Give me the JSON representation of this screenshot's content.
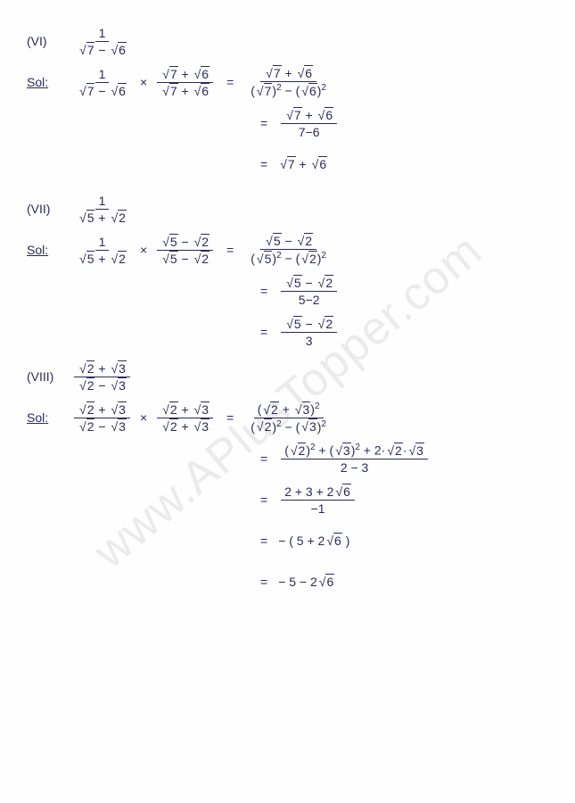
{
  "watermark": "www.APlusTopper.com",
  "p6": {
    "label": "(VI)",
    "given_num": "1",
    "given_den_a": "7",
    "given_den_b": "6",
    "sol": "Sol",
    "mult_num_a": "7",
    "mult_num_b": "6",
    "mult_den_a": "7",
    "mult_den_b": "6",
    "r1_num_a": "7",
    "r1_num_b": "6",
    "r1_den_a": "7",
    "r1_den_b": "6",
    "r2_num_a": "7",
    "r2_num_b": "6",
    "r2_den": "7−6",
    "r3_a": "7",
    "r3_b": "6"
  },
  "p7": {
    "label": "(VII)",
    "given_num": "1",
    "given_den_a": "5",
    "given_den_b": "2",
    "sol": "Sol",
    "mult_num_a": "5",
    "mult_num_b": "2",
    "mult_den_a": "5",
    "mult_den_b": "2",
    "r1_num_a": "5",
    "r1_num_b": "2",
    "r1_den_a": "5",
    "r1_den_b": "2",
    "r2_num_a": "5",
    "r2_num_b": "2",
    "r2_den": "5−2",
    "r3_num_a": "5",
    "r3_num_b": "2",
    "r3_den": "3"
  },
  "p8": {
    "label": "(VIII)",
    "given_num_a": "2",
    "given_num_b": "3",
    "given_den_a": "2",
    "given_den_b": "3",
    "sol": "Sol",
    "mult_num_a": "2",
    "mult_num_b": "3",
    "mult_den_a": "2",
    "mult_den_b": "3",
    "r1_num_a": "2",
    "r1_num_b": "3",
    "r1_den_a": "2",
    "r1_den_b": "3",
    "r2_a": "2",
    "r2_b": "3",
    "r2_c": "2",
    "r2_d": "3",
    "r2_den": "2 − 3",
    "r3_num": "2 + 3 + 2",
    "r3_sqrt": "6",
    "r3_den": "−1",
    "r4": "− ( 5 + 2",
    "r4_sqrt": "6",
    "r4_close": ")",
    "r5": "− 5 − 2",
    "r5_sqrt": "6"
  }
}
